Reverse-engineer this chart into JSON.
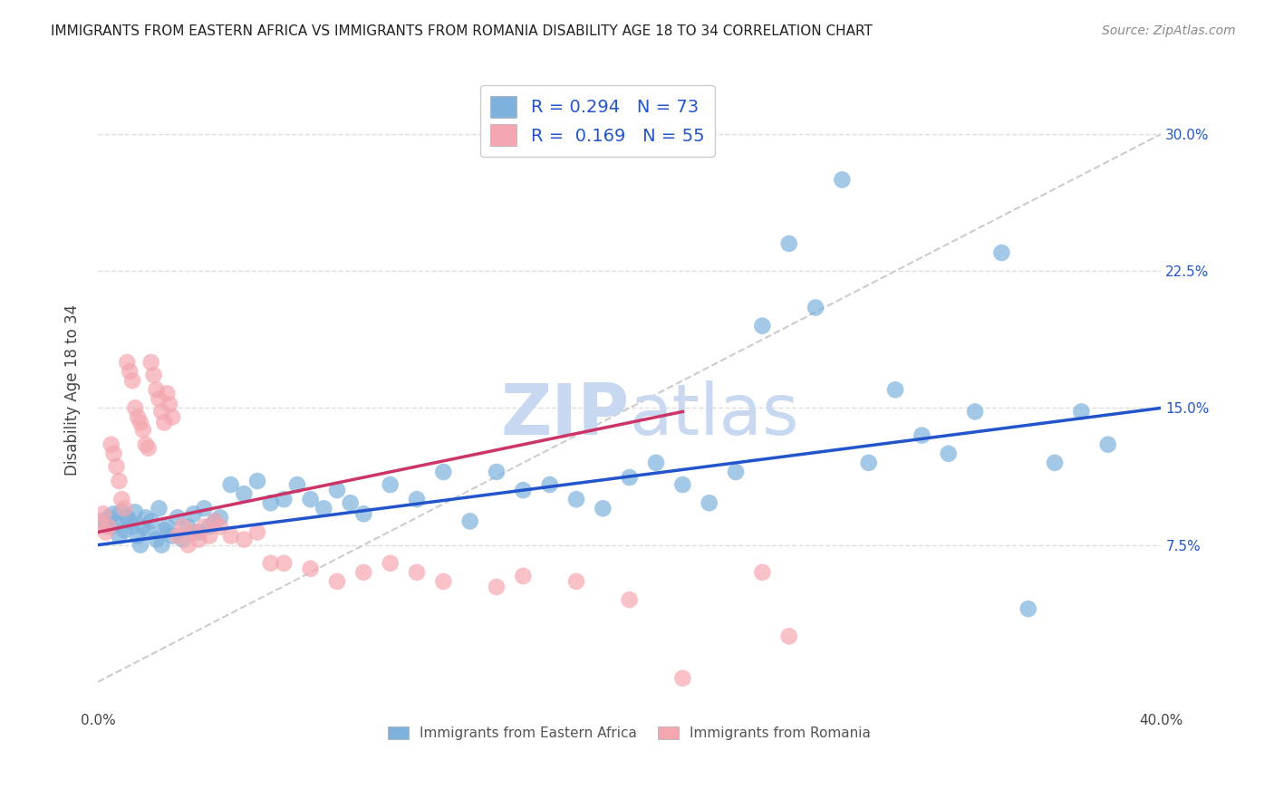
{
  "title": "IMMIGRANTS FROM EASTERN AFRICA VS IMMIGRANTS FROM ROMANIA DISABILITY AGE 18 TO 34 CORRELATION CHART",
  "source": "Source: ZipAtlas.com",
  "ylabel": "Disability Age 18 to 34",
  "ytick_labels": [
    "7.5%",
    "15.0%",
    "22.5%",
    "30.0%"
  ],
  "ytick_values": [
    0.075,
    0.15,
    0.225,
    0.3
  ],
  "xlim": [
    0.0,
    0.4
  ],
  "ylim": [
    -0.015,
    0.335
  ],
  "legend_blue_R": "0.294",
  "legend_blue_N": "73",
  "legend_pink_R": "0.169",
  "legend_pink_N": "55",
  "legend_label_blue": "Immigrants from Eastern Africa",
  "legend_label_pink": "Immigrants from Romania",
  "blue_color": "#7EB2DD",
  "pink_color": "#F4A7B0",
  "blue_line_color": "#2255CC",
  "pink_line_color": "#CC3366",
  "dashed_line_color": "#CCCCCC",
  "blue_scatter_x": [
    0.002,
    0.003,
    0.004,
    0.005,
    0.006,
    0.007,
    0.008,
    0.009,
    0.01,
    0.011,
    0.012,
    0.013,
    0.014,
    0.015,
    0.016,
    0.017,
    0.018,
    0.019,
    0.02,
    0.022,
    0.023,
    0.024,
    0.025,
    0.026,
    0.028,
    0.03,
    0.032,
    0.034,
    0.036,
    0.038,
    0.04,
    0.042,
    0.044,
    0.046,
    0.05,
    0.055,
    0.06,
    0.065,
    0.07,
    0.075,
    0.08,
    0.085,
    0.09,
    0.095,
    0.1,
    0.11,
    0.12,
    0.13,
    0.14,
    0.15,
    0.16,
    0.17,
    0.18,
    0.19,
    0.2,
    0.21,
    0.22,
    0.23,
    0.24,
    0.25,
    0.26,
    0.27,
    0.28,
    0.29,
    0.3,
    0.31,
    0.32,
    0.33,
    0.34,
    0.35,
    0.36,
    0.37,
    0.38
  ],
  "blue_scatter_y": [
    0.088,
    0.086,
    0.09,
    0.085,
    0.092,
    0.087,
    0.08,
    0.093,
    0.083,
    0.09,
    0.088,
    0.085,
    0.093,
    0.08,
    0.075,
    0.085,
    0.09,
    0.082,
    0.088,
    0.078,
    0.095,
    0.075,
    0.083,
    0.085,
    0.08,
    0.09,
    0.078,
    0.085,
    0.092,
    0.082,
    0.095,
    0.085,
    0.088,
    0.09,
    0.108,
    0.103,
    0.11,
    0.098,
    0.1,
    0.108,
    0.1,
    0.095,
    0.105,
    0.098,
    0.092,
    0.108,
    0.1,
    0.115,
    0.088,
    0.115,
    0.105,
    0.108,
    0.1,
    0.095,
    0.112,
    0.12,
    0.108,
    0.098,
    0.115,
    0.195,
    0.24,
    0.205,
    0.275,
    0.12,
    0.16,
    0.135,
    0.125,
    0.148,
    0.235,
    0.04,
    0.12,
    0.148,
    0.13
  ],
  "pink_scatter_x": [
    0.001,
    0.002,
    0.003,
    0.004,
    0.005,
    0.006,
    0.007,
    0.008,
    0.009,
    0.01,
    0.011,
    0.012,
    0.013,
    0.014,
    0.015,
    0.016,
    0.017,
    0.018,
    0.019,
    0.02,
    0.021,
    0.022,
    0.023,
    0.024,
    0.025,
    0.026,
    0.027,
    0.028,
    0.03,
    0.032,
    0.034,
    0.036,
    0.038,
    0.04,
    0.042,
    0.044,
    0.046,
    0.05,
    0.055,
    0.06,
    0.065,
    0.07,
    0.08,
    0.09,
    0.1,
    0.11,
    0.12,
    0.13,
    0.15,
    0.16,
    0.18,
    0.2,
    0.22,
    0.25,
    0.26
  ],
  "pink_scatter_y": [
    0.088,
    0.092,
    0.082,
    0.085,
    0.13,
    0.125,
    0.118,
    0.11,
    0.1,
    0.095,
    0.175,
    0.17,
    0.165,
    0.15,
    0.145,
    0.142,
    0.138,
    0.13,
    0.128,
    0.175,
    0.168,
    0.16,
    0.155,
    0.148,
    0.142,
    0.158,
    0.152,
    0.145,
    0.08,
    0.085,
    0.075,
    0.082,
    0.078,
    0.085,
    0.08,
    0.088,
    0.085,
    0.08,
    0.078,
    0.082,
    0.065,
    0.065,
    0.062,
    0.055,
    0.06,
    0.065,
    0.06,
    0.055,
    0.052,
    0.058,
    0.055,
    0.045,
    0.002,
    0.06,
    0.025
  ],
  "blue_trendline_x": [
    0.0,
    0.4
  ],
  "blue_trendline_y": [
    0.075,
    0.15
  ],
  "pink_trendline_x": [
    0.0,
    0.22
  ],
  "pink_trendline_y": [
    0.082,
    0.148
  ],
  "dashed_line_x": [
    0.0,
    0.4
  ],
  "dashed_line_y": [
    0.0,
    0.3
  ],
  "watermark_color": "#C8D8F0",
  "background_color": "#FFFFFF",
  "grid_color": "#DDDDDD"
}
